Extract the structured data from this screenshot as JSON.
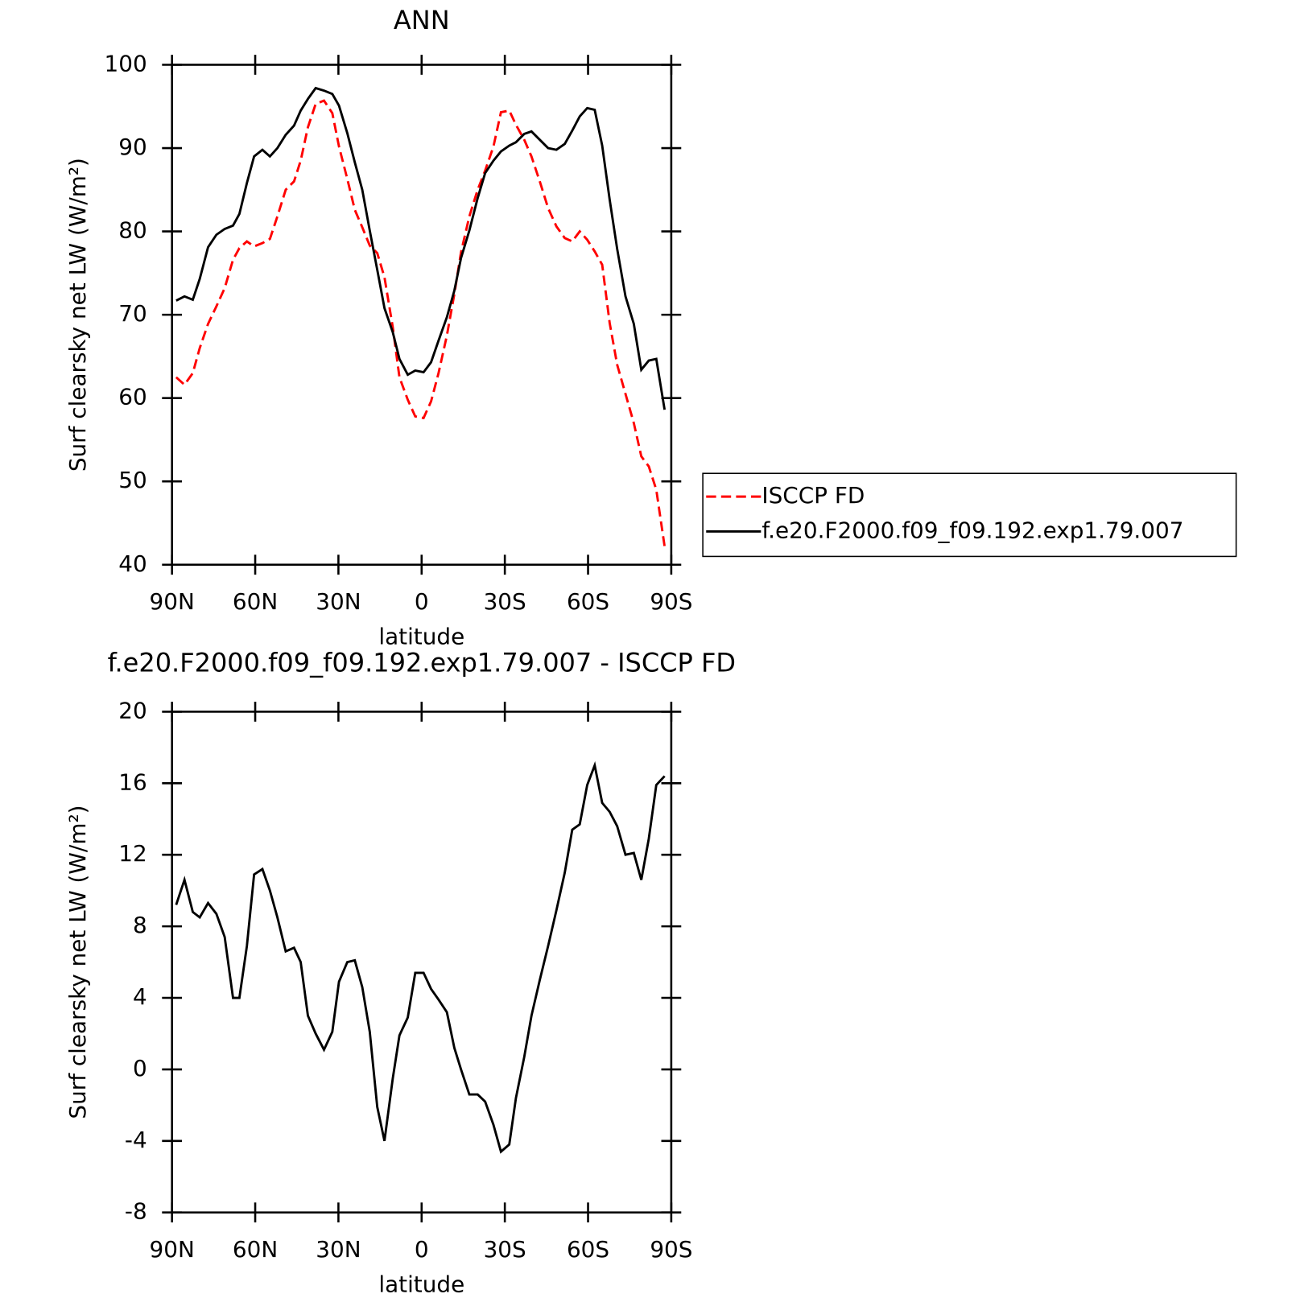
{
  "chart_data": [
    {
      "type": "line",
      "title": "ANN",
      "xlabel": "latitude",
      "ylabel": "Surf clearsky net LW (W/m²)",
      "x": [
        88.5,
        85.5,
        82.5,
        80,
        77,
        74,
        71,
        68,
        65.7,
        63,
        60.4,
        57.4,
        54.7,
        52,
        49,
        46,
        43.6,
        41,
        38.2,
        35.2,
        32.2,
        29.8,
        26.8,
        24.1,
        21.4,
        18.7,
        16,
        13.4,
        10.4,
        8,
        5,
        2.3,
        -0.7,
        -3.4,
        -6.1,
        -9.1,
        -11.8,
        -14.2,
        -17.2,
        -20.2,
        -22.9,
        -25.9,
        -28.6,
        -31.6,
        -34,
        -37,
        -39.6,
        -42.6,
        -45.6,
        -48.6,
        -51.6,
        -54.3,
        -57,
        -59.7,
        -62.4,
        -65.1,
        -67.8,
        -70.5,
        -73.5,
        -76.5,
        -79.2,
        -81.9,
        -84.6,
        -87.6
      ],
      "series": [
        {
          "name": "ISCCP FD",
          "color": "#ff0000",
          "line_style": "dashed",
          "values": [
            62.5,
            61.6,
            63,
            66,
            68.9,
            71,
            73.2,
            76.6,
            78,
            78.8,
            78.2,
            78.6,
            79.1,
            81.8,
            85.0,
            86,
            88.5,
            92.5,
            95.3,
            95.7,
            94.2,
            90.2,
            86.3,
            82.6,
            80.5,
            78.3,
            77.4,
            74.5,
            68.5,
            62.5,
            59.8,
            57.8,
            57.6,
            59.6,
            63,
            67.5,
            72.5,
            77.5,
            81.8,
            85.0,
            87.3,
            90.2,
            94.3,
            94.5,
            92.8,
            91,
            89,
            86,
            82.8,
            80.6,
            79.2,
            78.8,
            80,
            79,
            77.6,
            76,
            69,
            64,
            60.5,
            57,
            53,
            51.8,
            49,
            42.2
          ]
        },
        {
          "name": "f.e20.F2000.f09_f09.192.exp1.79.007",
          "color": "#000000",
          "line_style": "solid",
          "values": [
            71.7,
            72.2,
            71.8,
            74.3,
            78.1,
            79.6,
            80.3,
            80.7,
            82.1,
            85.8,
            89.0,
            89.8,
            89.0,
            90.0,
            91.6,
            92.7,
            94.5,
            95.9,
            97.2,
            96.9,
            96.5,
            95.1,
            91.8,
            88.3,
            85.0,
            80.1,
            75.4,
            70.8,
            67.9,
            64.7,
            62.8,
            63.3,
            63.1,
            64.3,
            66.9,
            69.7,
            72.9,
            76.8,
            80.1,
            84.0,
            87.0,
            88.5,
            89.6,
            90.3,
            90.7,
            91.7,
            92.0,
            91.0,
            90.0,
            89.8,
            90.5,
            92.1,
            93.8,
            94.8,
            94.6,
            90.3,
            83.8,
            77.9,
            72.2,
            68.9,
            63.4,
            64.5,
            64.7,
            58.6
          ]
        }
      ],
      "xlim": [
        90,
        -90
      ],
      "xticks": [
        {
          "value": 90,
          "label": "90N"
        },
        {
          "value": 60,
          "label": "60N"
        },
        {
          "value": 30,
          "label": "30N"
        },
        0,
        {
          "value": -30,
          "label": "30S"
        },
        {
          "value": -60,
          "label": "60S"
        },
        {
          "value": -90,
          "label": "90S"
        }
      ],
      "ylim": [
        40,
        100
      ],
      "yticks": [
        40,
        50,
        60,
        70,
        80,
        90,
        100
      ],
      "legend": "outside-right"
    },
    {
      "type": "line",
      "title": "f.e20.F2000.f09_f09.192.exp1.79.007 - ISCCP FD",
      "xlabel": "latitude",
      "ylabel": "Surf clearsky net LW (W/m²)",
      "x": [
        88.5,
        85.5,
        82.5,
        80,
        77,
        74,
        71,
        68,
        65.7,
        63,
        60.4,
        57.4,
        54.7,
        52,
        49,
        46,
        43.6,
        41,
        38.2,
        35.2,
        32.2,
        29.8,
        26.8,
        24.1,
        21.4,
        18.7,
        16,
        13.4,
        10.4,
        8,
        5,
        2.3,
        -0.7,
        -3.4,
        -6.1,
        -9.1,
        -11.8,
        -14.2,
        -17.2,
        -20.2,
        -22.9,
        -25.9,
        -28.6,
        -31.6,
        -34,
        -37,
        -39.6,
        -42.6,
        -45.6,
        -48.6,
        -51.6,
        -54.3,
        -57,
        -59.7,
        -62.4,
        -65.1,
        -67.8,
        -70.5,
        -73.5,
        -76.5,
        -79.2,
        -81.9,
        -84.6,
        -87.6
      ],
      "series": [
        {
          "color": "#000000",
          "line_style": "solid",
          "values": [
            9.2,
            10.6,
            8.8,
            8.5,
            9.3,
            8.7,
            7.4,
            4.0,
            4.0,
            6.9,
            10.9,
            11.2,
            10.0,
            8.5,
            6.6,
            6.8,
            6.0,
            3.0,
            2.0,
            1.1,
            2.1,
            4.9,
            6.0,
            6.1,
            4.6,
            2.1,
            -2.1,
            -4.0,
            -0.5,
            1.9,
            2.9,
            5.4,
            5.4,
            4.5,
            3.9,
            3.2,
            1.2,
            0.0,
            -1.4,
            -1.4,
            -1.8,
            -3.1,
            -4.6,
            -4.2,
            -1.6,
            0.7,
            3.0,
            5.0,
            6.9,
            8.9,
            11.0,
            13.4,
            13.7,
            15.9,
            17.0,
            14.9,
            14.4,
            13.6,
            12.0,
            12.1,
            10.6,
            12.9,
            15.9,
            16.4
          ]
        }
      ],
      "xlim": [
        90,
        -90
      ],
      "xticks": [
        {
          "value": 90,
          "label": "90N"
        },
        {
          "value": 60,
          "label": "60N"
        },
        {
          "value": 30,
          "label": "30N"
        },
        0,
        {
          "value": -30,
          "label": "30S"
        },
        {
          "value": -60,
          "label": "60S"
        },
        {
          "value": -90,
          "label": "90S"
        }
      ],
      "ylim": [
        -8,
        20
      ],
      "yticks": [
        -8,
        -4,
        0,
        4,
        8,
        12,
        16,
        20
      ]
    }
  ]
}
